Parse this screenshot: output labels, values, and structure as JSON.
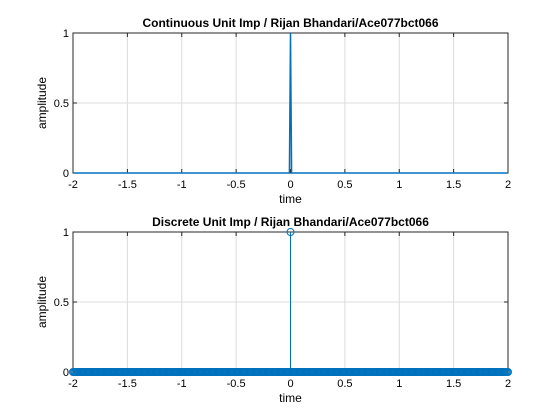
{
  "colors": {
    "background": "#ffffff",
    "axes_box": "#262626",
    "grid": "#dcdcdc",
    "series": "#0072bd",
    "text": "#000000"
  },
  "chart_data": [
    {
      "type": "line",
      "title": "Continuous Unit Imp / Rijan Bhandari/Ace077bct066",
      "xlabel": "time",
      "ylabel": "amplitude",
      "xlim": [
        -2,
        2
      ],
      "ylim": [
        0,
        1
      ],
      "grid": true,
      "x_ticks": [
        -2,
        -1.5,
        -1,
        -0.5,
        0,
        0.5,
        1,
        1.5,
        2
      ],
      "x_tick_labels": [
        "-2",
        "-1.5",
        "-1",
        "-0.5",
        "0",
        "0.5",
        "1",
        "1.5",
        "2"
      ],
      "y_ticks": [
        0,
        0.5,
        1
      ],
      "y_tick_labels": [
        "0",
        "0.5",
        "1"
      ],
      "series": [
        {
          "x": [
            -2,
            -0.01,
            0,
            0.01,
            2
          ],
          "y": [
            0,
            0,
            1,
            0,
            0
          ]
        }
      ]
    },
    {
      "type": "stem",
      "title": "Discrete Unit Imp / Rijan Bhandari/Ace077bct066",
      "xlabel": "time",
      "ylabel": "amplitude",
      "xlim": [
        -2,
        2
      ],
      "ylim": [
        0,
        1
      ],
      "grid": true,
      "x_ticks": [
        -2,
        -1.5,
        -1,
        -0.5,
        0,
        0.5,
        1,
        1.5,
        2
      ],
      "x_tick_labels": [
        "-2",
        "-1.5",
        "-1",
        "-0.5",
        "0",
        "0.5",
        "1",
        "1.5",
        "2"
      ],
      "y_ticks": [
        0,
        0.5,
        1
      ],
      "y_tick_labels": [
        "0",
        "0.5",
        "1"
      ],
      "x_range": {
        "start": -2,
        "stop": 2,
        "step": 0.01
      },
      "impulse": {
        "x": 0,
        "y": 1
      },
      "baseline_y": 0
    }
  ]
}
